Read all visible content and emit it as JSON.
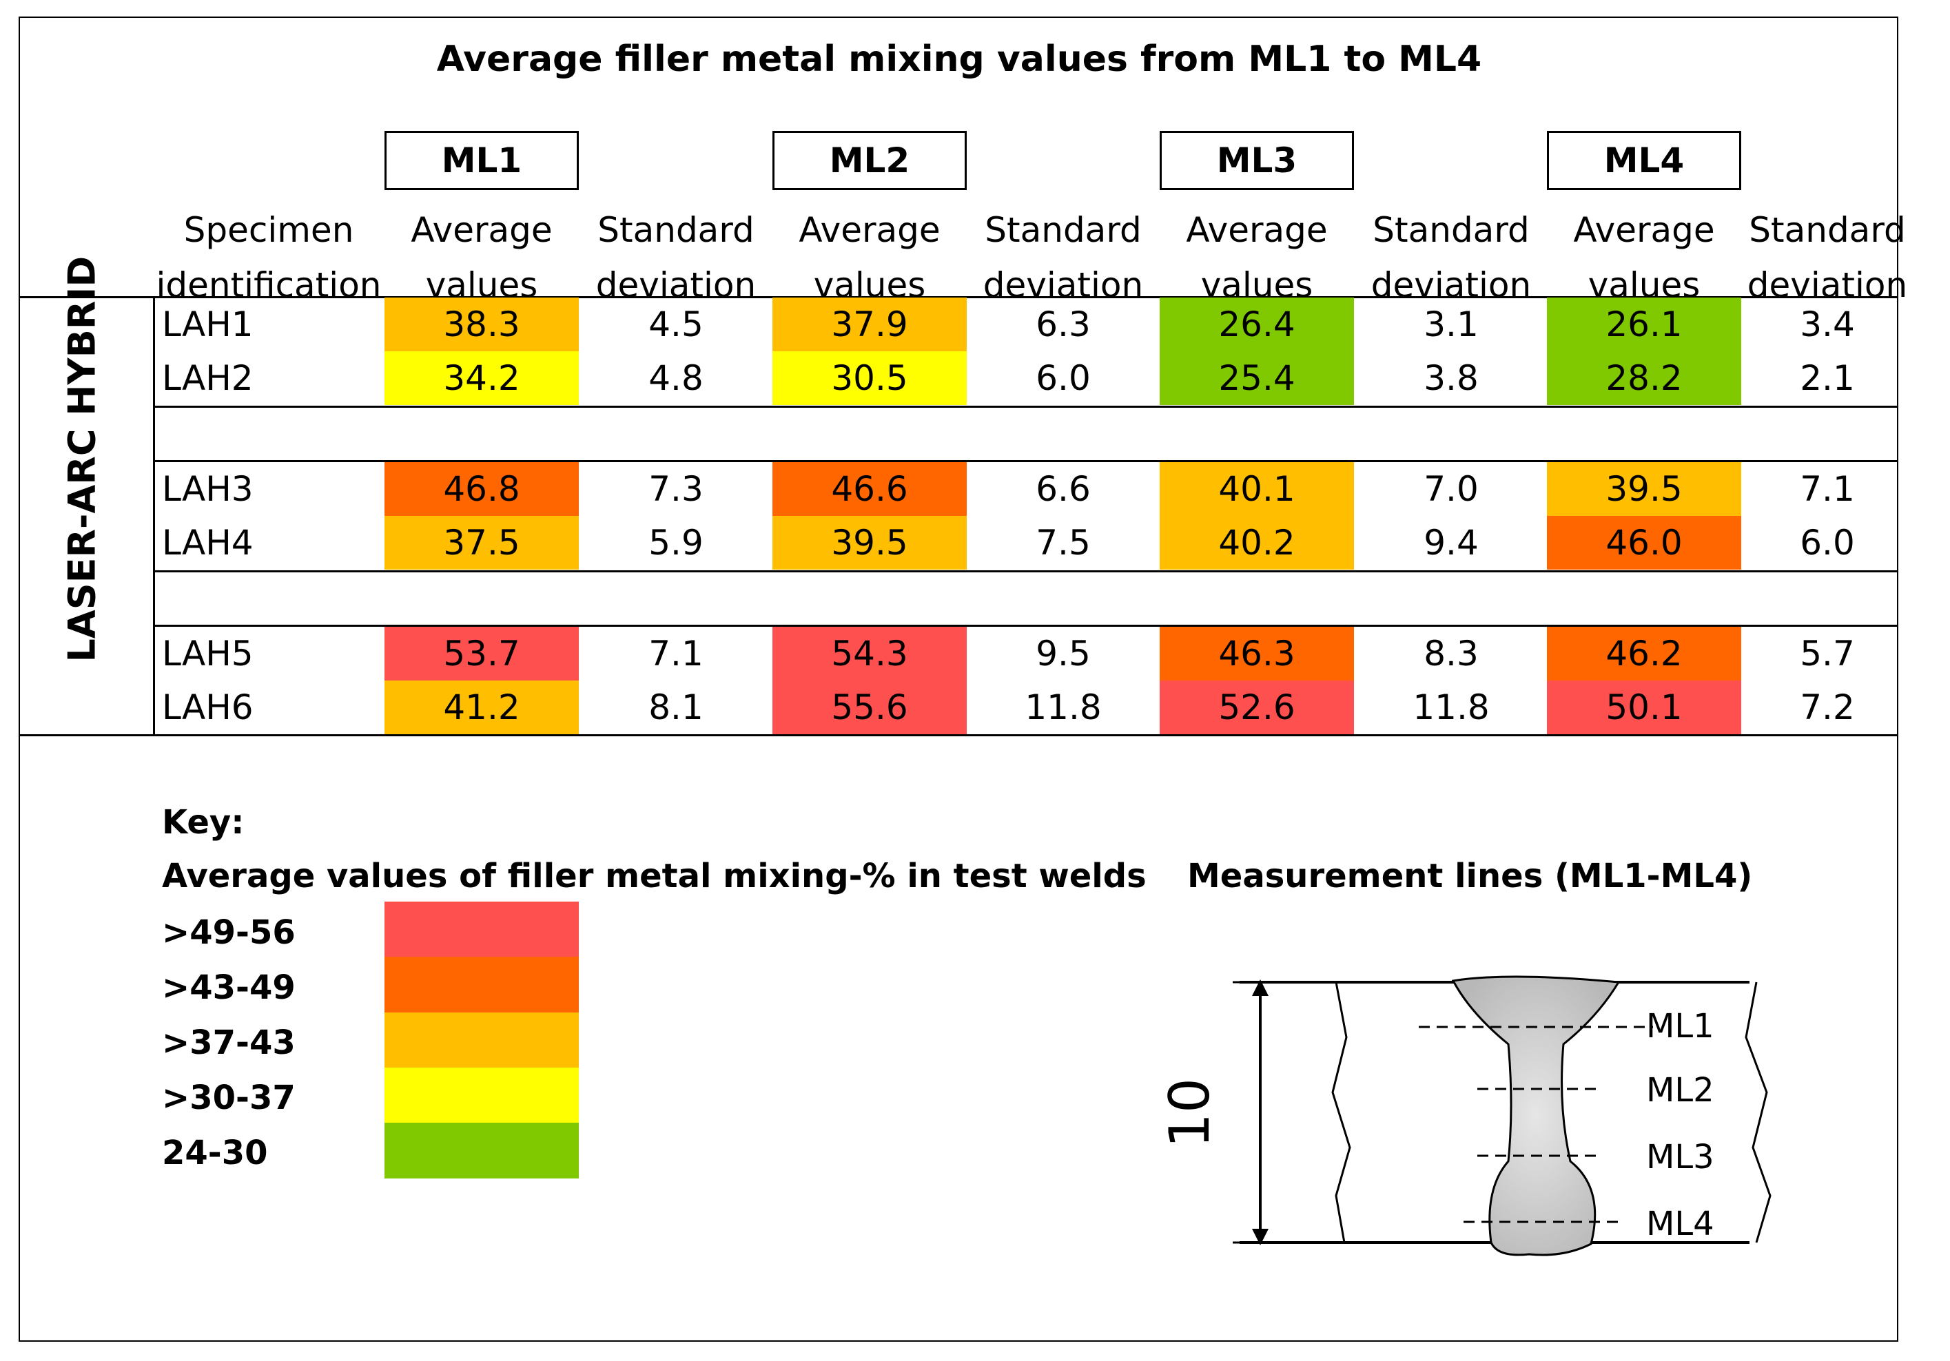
{
  "title": "Average filler metal mixing values from ML1 to ML4",
  "measurement_lines": [
    "ML1",
    "ML2",
    "ML3",
    "ML4"
  ],
  "headers": {
    "specimen_line1": "Specimen",
    "specimen_line2": "identification",
    "avg_line1": "Average",
    "avg_line2": "values",
    "std_line1": "Standard",
    "std_line2": "deviation"
  },
  "side_label": "LASER-ARC HYBRID",
  "rows": [
    {
      "id": "LAH1",
      "ml1": "38.3",
      "sd1": "4.5",
      "ml2": "37.9",
      "sd2": "6.3",
      "ml3": "26.4",
      "sd3": "3.1",
      "ml4": "26.1",
      "sd4": "3.4"
    },
    {
      "id": "LAH2",
      "ml1": "34.2",
      "sd1": "4.8",
      "ml2": "30.5",
      "sd2": "6.0",
      "ml3": "25.4",
      "sd3": "3.8",
      "ml4": "28.2",
      "sd4": "2.1"
    },
    {
      "id": "LAH3",
      "ml1": "46.8",
      "sd1": "7.3",
      "ml2": "46.6",
      "sd2": "6.6",
      "ml3": "40.1",
      "sd3": "7.0",
      "ml4": "39.5",
      "sd4": "7.1"
    },
    {
      "id": "LAH4",
      "ml1": "37.5",
      "sd1": "5.9",
      "ml2": "39.5",
      "sd2": "7.5",
      "ml3": "40.2",
      "sd3": "9.4",
      "ml4": "46.0",
      "sd4": "6.0"
    },
    {
      "id": "LAH5",
      "ml1": "53.7",
      "sd1": "7.1",
      "ml2": "54.3",
      "sd2": "9.5",
      "ml3": "46.3",
      "sd3": "8.3",
      "ml4": "46.2",
      "sd4": "5.7"
    },
    {
      "id": "LAH6",
      "ml1": "41.2",
      "sd1": "8.1",
      "ml2": "55.6",
      "sd2": "11.8",
      "ml3": "52.6",
      "sd3": "11.8",
      "ml4": "50.1",
      "sd4": "7.2"
    }
  ],
  "colors": {
    "red": "#ff5050",
    "dark_orange": "#ff6600",
    "orange": "#ffbf00",
    "yellow": "#ffff00",
    "green": "#80c800"
  },
  "key": {
    "heading": "Key:",
    "subheading": "Average values of filler metal mixing-% in test welds",
    "ranges": [
      {
        "label": ">49-56",
        "color": "#ff5050"
      },
      {
        "label": ">43-49",
        "color": "#ff6600"
      },
      {
        "label": ">37-43",
        "color": "#ffbf00"
      },
      {
        "label": ">30-37",
        "color": "#ffff00"
      },
      {
        "label": "24-30",
        "color": "#80c800"
      }
    ]
  },
  "diagram": {
    "heading": "Measurement lines (ML1-ML4)",
    "dimension": "10",
    "lines": [
      "ML1",
      "ML2",
      "ML3",
      "ML4"
    ]
  }
}
